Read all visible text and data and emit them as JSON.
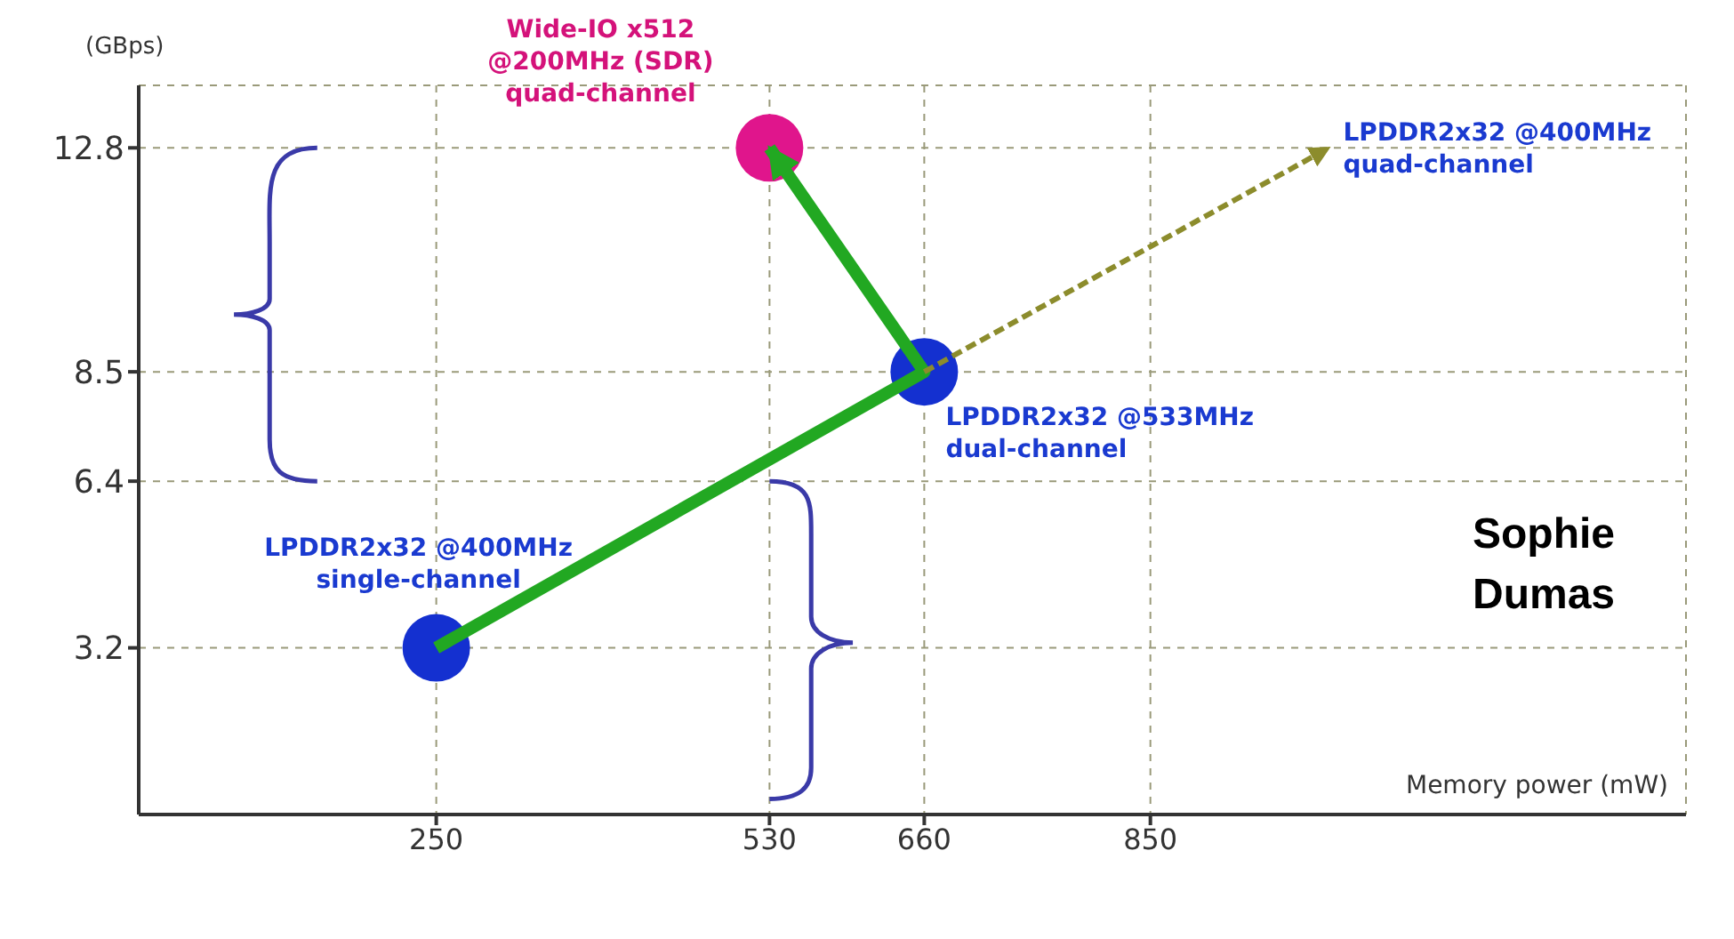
{
  "chart_data": {
    "type": "scatter",
    "xlabel": "Memory power (mW)",
    "ylabel": "(GBps)",
    "xlim": [
      0,
      1300
    ],
    "xticks": [
      250,
      530,
      660,
      850
    ],
    "ylim": [
      0,
      14
    ],
    "yticks": [
      3.2,
      6.4,
      8.5,
      12.8
    ],
    "grid": true,
    "series": [
      {
        "colors": [
          "#1430d0",
          "#1430d0",
          "#e0158c"
        ],
        "x": [
          250,
          660,
          530
        ],
        "values": [
          3.2,
          8.5,
          12.8
        ],
        "marker": "circle"
      },
      {
        "type": "line",
        "color": "#22a822",
        "x": [
          250,
          660,
          530
        ],
        "values": [
          3.2,
          8.5,
          12.8
        ],
        "line_style": "solid",
        "marker": "none"
      },
      {
        "type": "line",
        "color": "#8c8c2c",
        "x": [
          660,
          1000
        ],
        "values": [
          8.5,
          12.8
        ],
        "line_style": "dashed",
        "marker": "none"
      }
    ],
    "annotations": [
      {
        "text": "LPDDR2x32 @400MHz\nsingle-channel",
        "x": 250,
        "y": 3.2
      },
      {
        "text": "Wide-IO x512\n@200MHz (SDR)\nquad-channel",
        "x": 530,
        "y": 12.8
      },
      {
        "text": "LPDDR2x32 @533MHz\ndual-channel",
        "x": 660,
        "y": 8.5
      },
      {
        "text": "LPDDR2x32 @400MHz\nquad-channel",
        "x": 1000,
        "y": 12.8
      },
      "Sophie Dumas"
    ]
  }
}
